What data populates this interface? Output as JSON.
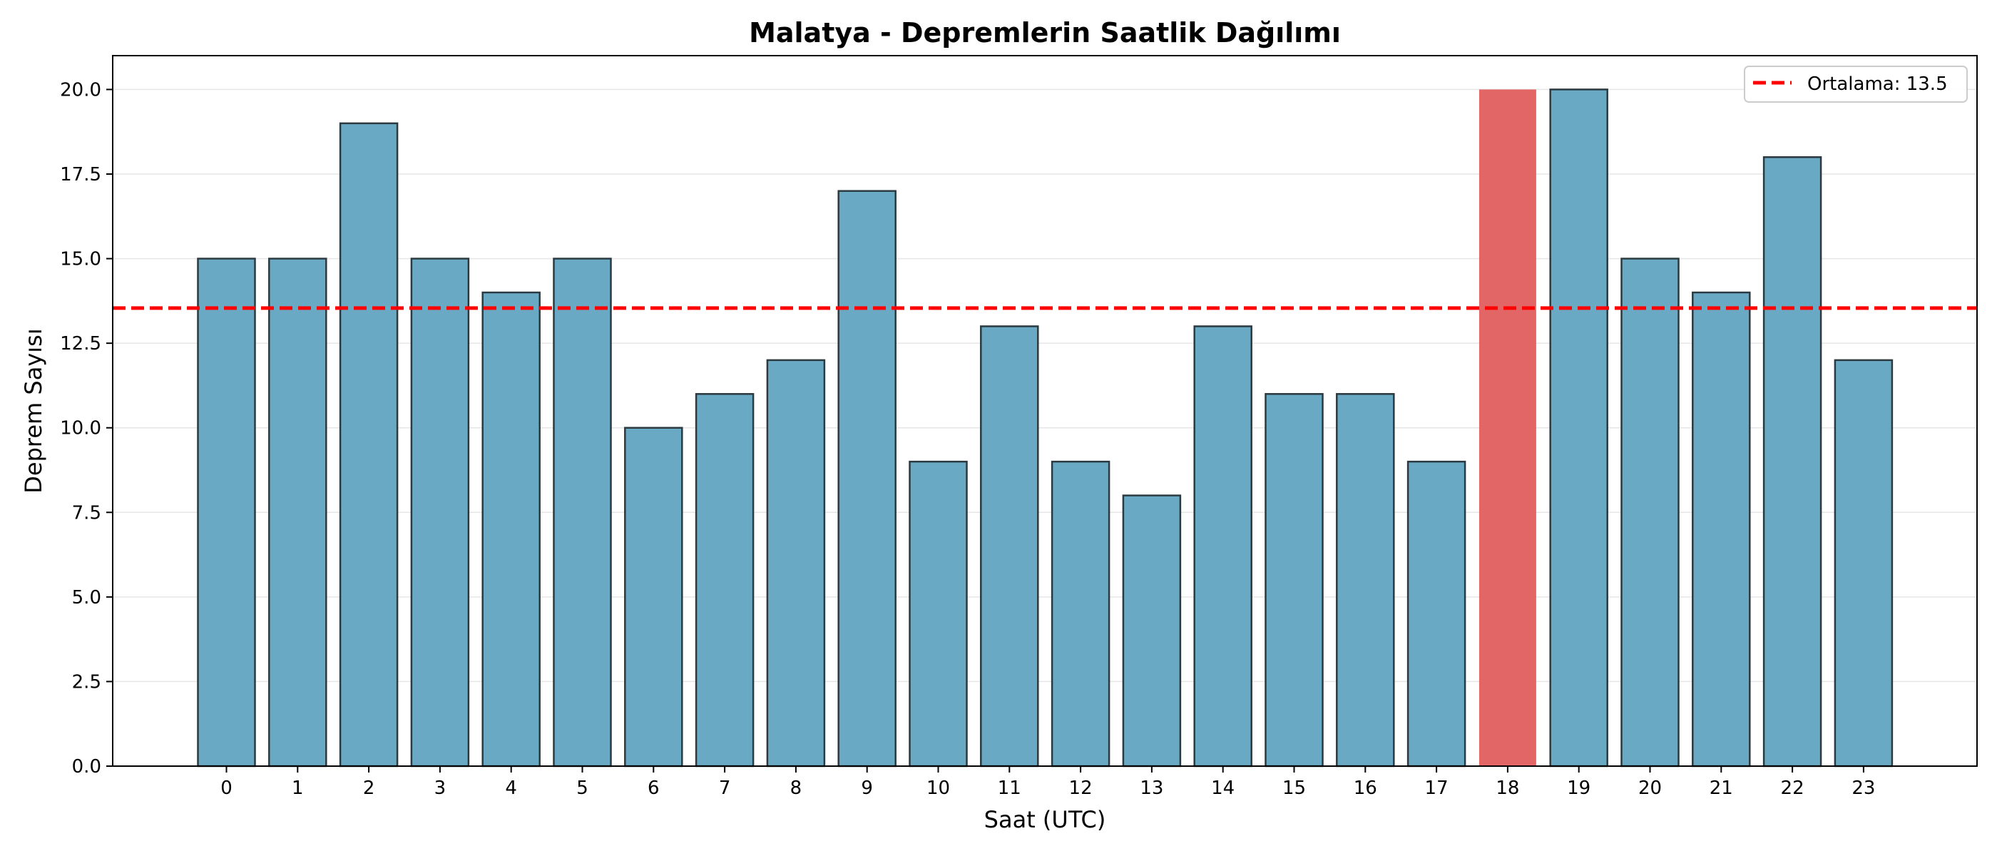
{
  "chart_data": {
    "type": "bar",
    "title": "Malatya - Depremlerin Saatlik Dağılımı",
    "xlabel": "Saat (UTC)",
    "ylabel": "Deprem Sayısı",
    "ylim": [
      0,
      21
    ],
    "yticks": [
      "0.0",
      "2.5",
      "5.0",
      "7.5",
      "10.0",
      "12.5",
      "15.0",
      "17.5",
      "20.0"
    ],
    "categories": [
      "0",
      "1",
      "2",
      "3",
      "4",
      "5",
      "6",
      "7",
      "8",
      "9",
      "10",
      "11",
      "12",
      "13",
      "14",
      "15",
      "16",
      "17",
      "18",
      "19",
      "20",
      "21",
      "22",
      "23"
    ],
    "values": [
      15,
      15,
      19,
      15,
      14,
      15,
      10,
      11,
      12,
      17,
      9,
      13,
      9,
      8,
      13,
      11,
      11,
      9,
      20,
      20,
      15,
      14,
      18,
      12
    ],
    "highlight_category": "18",
    "grid": "horizontal",
    "reference_line": {
      "value": 13.54,
      "style": "dashed",
      "color": "#ff0000",
      "legend_label": "Ortalama: 13.5"
    },
    "legend_position": "top-right",
    "colors": {
      "bar": "#6aa9c4",
      "bar_highlight": "#e36666",
      "bar_edge": "#2b3a40",
      "mean_line": "#ff0000",
      "grid": "#e6e6e6"
    }
  }
}
